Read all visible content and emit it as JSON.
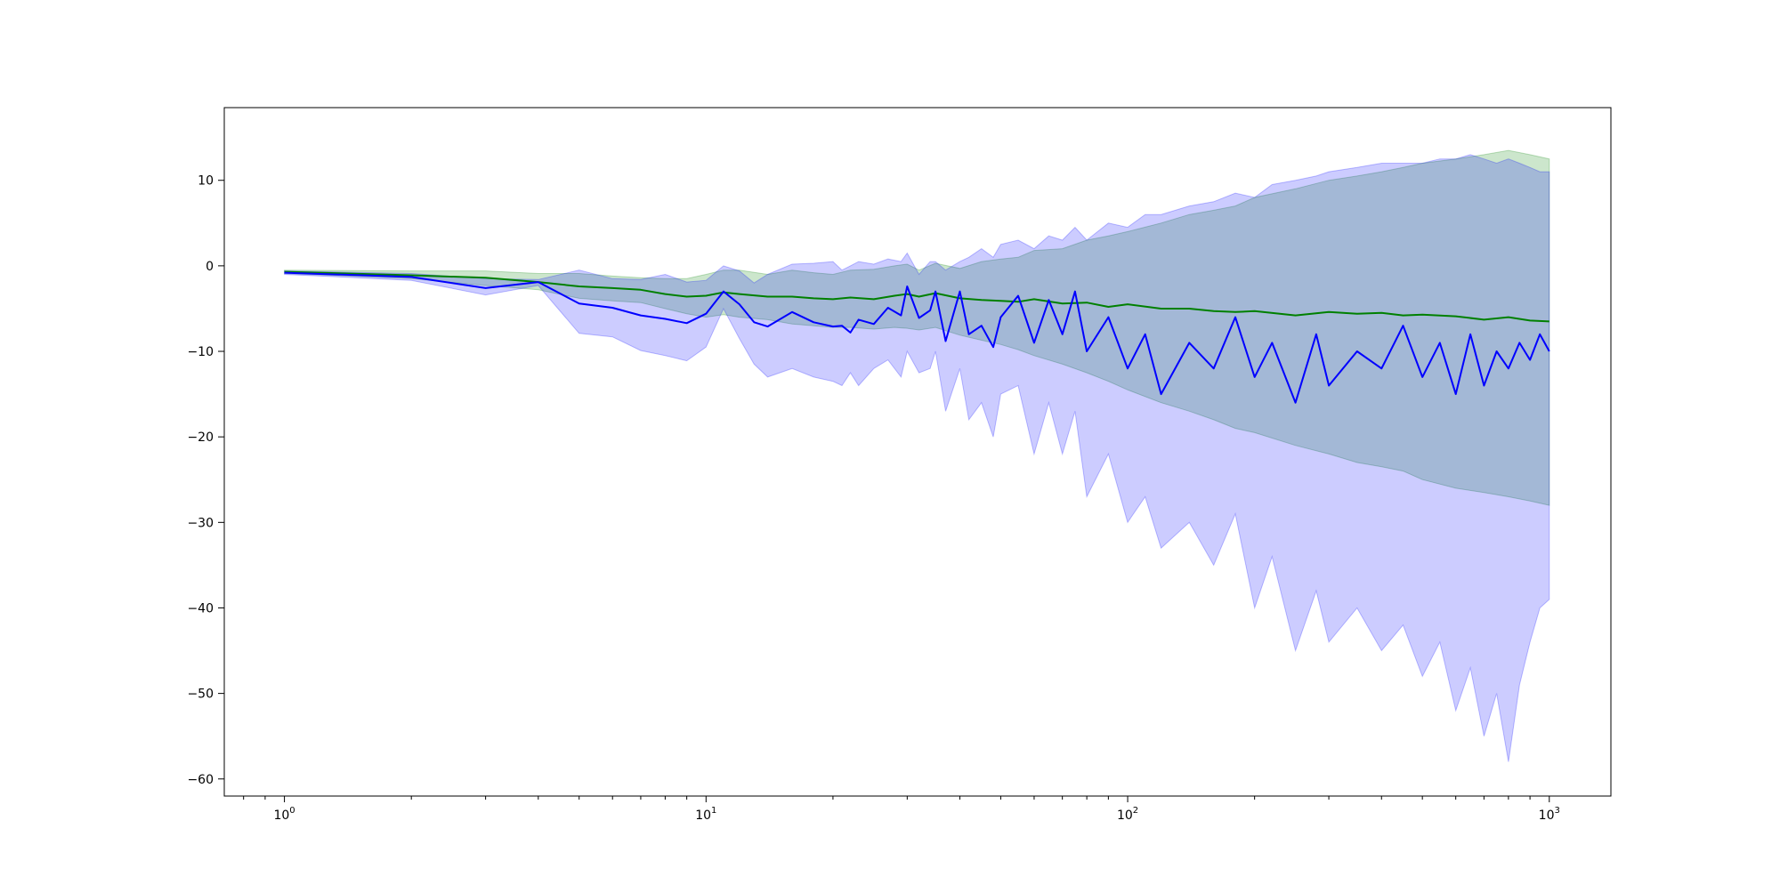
{
  "chart_data": {
    "type": "line",
    "title": "",
    "xlabel": "",
    "ylabel": "",
    "xscale": "log",
    "xlim": [
      0.72,
      1400
    ],
    "ylim": [
      -62,
      18.5
    ],
    "grid": false,
    "legend": "none",
    "x_ticks": [
      {
        "value": 1,
        "base": "10",
        "exp": "0"
      },
      {
        "value": 10,
        "base": "10",
        "exp": "1"
      },
      {
        "value": 100,
        "base": "10",
        "exp": "2"
      },
      {
        "value": 1000,
        "base": "10",
        "exp": "3"
      }
    ],
    "y_ticks": [
      {
        "value": 10,
        "label": "10"
      },
      {
        "value": 0,
        "label": "0"
      },
      {
        "value": -10,
        "label": "−10"
      },
      {
        "value": -20,
        "label": "−20"
      },
      {
        "value": -30,
        "label": "−30"
      },
      {
        "value": -40,
        "label": "−40"
      },
      {
        "value": -50,
        "label": "−50"
      },
      {
        "value": -60,
        "label": "−60"
      }
    ],
    "series": [
      {
        "color": "#008000",
        "band_color": "#008000",
        "x": [
          1,
          2,
          3,
          4,
          5,
          6,
          7,
          8,
          9,
          10,
          11,
          12,
          14,
          16,
          18,
          20,
          22,
          25,
          28,
          30,
          32,
          35,
          40,
          45,
          50,
          55,
          60,
          70,
          80,
          90,
          100,
          120,
          140,
          160,
          180,
          200,
          250,
          300,
          350,
          400,
          450,
          500,
          600,
          700,
          800,
          900,
          1000
        ],
        "values": [
          -0.7,
          -1.1,
          -1.4,
          -1.9,
          -2.4,
          -2.6,
          -2.8,
          -3.3,
          -3.6,
          -3.5,
          -3.1,
          -3.3,
          -3.6,
          -3.6,
          -3.8,
          -3.9,
          -3.7,
          -3.9,
          -3.5,
          -3.3,
          -3.6,
          -3.2,
          -3.8,
          -4.0,
          -4.1,
          -4.2,
          -3.9,
          -4.4,
          -4.3,
          -4.8,
          -4.5,
          -5.0,
          -5.0,
          -5.3,
          -5.4,
          -5.3,
          -5.8,
          -5.4,
          -5.6,
          -5.5,
          -5.8,
          -5.7,
          -5.9,
          -6.3,
          -6.0,
          -6.4,
          -6.5
        ],
        "upper": [
          -0.5,
          -0.6,
          -0.6,
          -0.9,
          -0.9,
          -1.2,
          -1.4,
          -1.5,
          -1.5,
          -1.0,
          -0.5,
          -0.5,
          -1.0,
          -0.5,
          -0.8,
          -1.0,
          -0.5,
          -0.4,
          0.0,
          0.2,
          -0.5,
          0.3,
          -0.3,
          0.5,
          0.8,
          1.0,
          1.8,
          2.0,
          3.0,
          3.5,
          4.0,
          5.0,
          6.0,
          6.5,
          7.0,
          8.0,
          9.0,
          10.0,
          10.5,
          11.0,
          11.5,
          12.0,
          12.5,
          13.0,
          13.5,
          13.0,
          12.5
        ],
        "lower": [
          -0.9,
          -1.5,
          -2.3,
          -2.8,
          -3.8,
          -4.1,
          -4.3,
          -5.0,
          -5.6,
          -6.0,
          -5.7,
          -6.0,
          -6.3,
          -6.8,
          -7.0,
          -7.2,
          -7.2,
          -7.4,
          -7.2,
          -7.3,
          -7.5,
          -7.2,
          -8.1,
          -8.7,
          -9.2,
          -9.8,
          -10.5,
          -11.5,
          -12.5,
          -13.5,
          -14.5,
          -16.0,
          -17.0,
          -18.0,
          -19.0,
          -19.5,
          -21.0,
          -22.0,
          -23.0,
          -23.5,
          -24.0,
          -25.0,
          -26.0,
          -26.5,
          -27.0,
          -27.5,
          -28.0
        ]
      },
      {
        "color": "#0000ff",
        "band_color": "#0000ff",
        "x": [
          1,
          2,
          3,
          4,
          5,
          6,
          7,
          8,
          9,
          10,
          11,
          12,
          13,
          14,
          16,
          18,
          20,
          21,
          22,
          23,
          25,
          27,
          29,
          30,
          32,
          34,
          35,
          37,
          40,
          42,
          45,
          48,
          50,
          55,
          60,
          65,
          70,
          75,
          80,
          90,
          100,
          110,
          120,
          140,
          160,
          180,
          200,
          220,
          250,
          280,
          300,
          350,
          400,
          450,
          500,
          550,
          600,
          650,
          700,
          750,
          800,
          850,
          900,
          950,
          1000
        ],
        "values": [
          -0.8,
          -1.3,
          -2.6,
          -1.9,
          -4.4,
          -4.9,
          -5.8,
          -6.2,
          -6.7,
          -5.6,
          -3.0,
          -4.5,
          -6.6,
          -7.1,
          -5.4,
          -6.6,
          -7.1,
          -7.0,
          -7.8,
          -6.3,
          -6.8,
          -4.9,
          -5.8,
          -2.4,
          -6.1,
          -5.2,
          -3.0,
          -8.8,
          -3.0,
          -8.0,
          -7.0,
          -9.5,
          -6.0,
          -3.5,
          -9.0,
          -4.0,
          -8.0,
          -3.0,
          -10.0,
          -6.0,
          -12.0,
          -8.0,
          -15.0,
          -9.0,
          -12.0,
          -6.0,
          -13.0,
          -9.0,
          -16.0,
          -8.0,
          -14.0,
          -10.0,
          -12.0,
          -7.0,
          -13.0,
          -9.0,
          -15.0,
          -8.0,
          -14.0,
          -10.0,
          -12.0,
          -9.0,
          -11.0,
          -8.0,
          -10.0
        ],
        "upper": [
          -0.6,
          -0.9,
          -1.5,
          -1.6,
          -0.5,
          -1.5,
          -1.6,
          -1.0,
          -1.9,
          -1.7,
          0.0,
          -0.6,
          -2.0,
          -1.0,
          0.2,
          0.3,
          0.5,
          -0.5,
          0.0,
          0.5,
          0.2,
          0.8,
          0.5,
          1.5,
          -1.0,
          0.5,
          0.5,
          -0.5,
          0.5,
          1.0,
          2.0,
          1.0,
          2.5,
          3.0,
          2.0,
          3.5,
          3.0,
          4.5,
          3.0,
          5.0,
          4.5,
          6.0,
          6.0,
          7.0,
          7.5,
          8.5,
          8.0,
          9.5,
          10.0,
          10.5,
          11.0,
          11.5,
          12.0,
          12.0,
          12.0,
          12.5,
          12.5,
          13.0,
          12.5,
          12.0,
          12.5,
          12.0,
          11.5,
          11.0,
          11.0
        ],
        "lower": [
          -1.0,
          -1.7,
          -3.4,
          -2.3,
          -7.9,
          -8.3,
          -9.9,
          -10.5,
          -11.1,
          -9.5,
          -5.0,
          -8.5,
          -11.5,
          -13.0,
          -12.0,
          -13.0,
          -13.5,
          -14.0,
          -12.5,
          -14.0,
          -12.0,
          -11.0,
          -13.0,
          -10.0,
          -12.5,
          -12.0,
          -10.0,
          -17.0,
          -12.0,
          -18.0,
          -16.0,
          -20.0,
          -15.0,
          -14.0,
          -22.0,
          -16.0,
          -22.0,
          -17.0,
          -27.0,
          -22.0,
          -30.0,
          -27.0,
          -33.0,
          -30.0,
          -35.0,
          -29.0,
          -40.0,
          -34.0,
          -45.0,
          -38.0,
          -44.0,
          -40.0,
          -45.0,
          -42.0,
          -48.0,
          -44.0,
          -52.0,
          -47.0,
          -55.0,
          -50.0,
          -58.0,
          -49.0,
          -44.0,
          -40.0,
          -39.0
        ]
      }
    ]
  }
}
